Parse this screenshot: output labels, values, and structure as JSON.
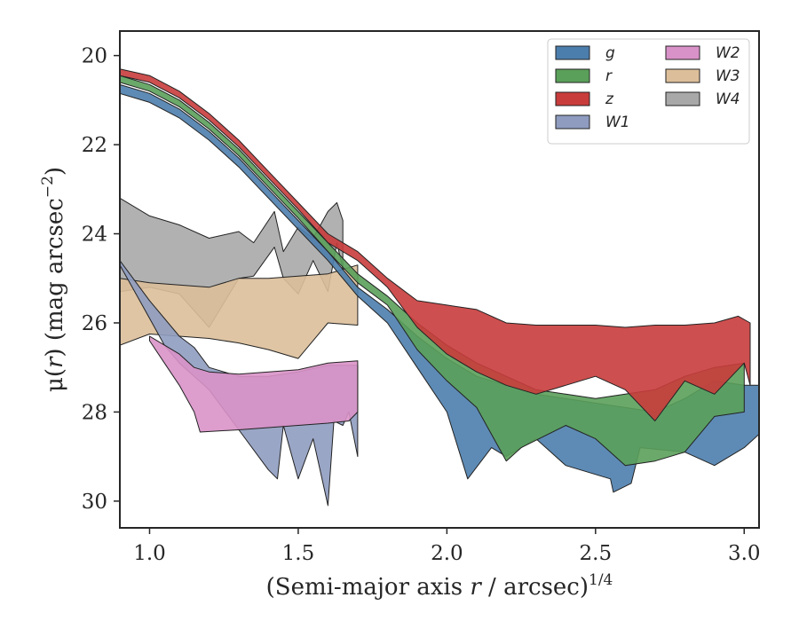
{
  "chart_data": {
    "type": "area",
    "xlabel_prefix": "(Semi-major axis ",
    "xlabel_var": "r",
    "xlabel_mid": " / arcsec)",
    "xlabel_sup": "1/4",
    "ylabel_prefix": "μ(",
    "ylabel_var": "r",
    "ylabel_mid": ") (mag arcsec",
    "ylabel_sup": "−2",
    "ylabel_suffix": ")",
    "xlim": [
      0.9,
      3.05
    ],
    "ylim": [
      30.6,
      19.45
    ],
    "y_inverted": true,
    "xticks": [
      1.0,
      1.5,
      2.0,
      2.5,
      3.0
    ],
    "xtick_labels": [
      "1.0",
      "1.5",
      "2.0",
      "2.5",
      "3.0"
    ],
    "yticks": [
      20,
      22,
      24,
      26,
      28,
      30
    ],
    "ytick_labels": [
      "20",
      "22",
      "24",
      "26",
      "28",
      "30"
    ],
    "legend_placement": "top-right",
    "legend_columns": 2,
    "grid": false,
    "series": [
      {
        "name": "W4",
        "color": "#a8a8a8",
        "upper": [
          [
            0.9,
            23.2
          ],
          [
            1.0,
            23.6
          ],
          [
            1.1,
            23.8
          ],
          [
            1.2,
            24.1
          ],
          [
            1.3,
            23.95
          ],
          [
            1.35,
            24.2
          ],
          [
            1.42,
            23.5
          ],
          [
            1.45,
            24.4
          ],
          [
            1.5,
            23.85
          ],
          [
            1.55,
            24.1
          ],
          [
            1.6,
            23.5
          ],
          [
            1.63,
            23.3
          ],
          [
            1.65,
            23.7
          ]
        ],
        "lower": [
          [
            0.9,
            25.3
          ],
          [
            1.0,
            25.2
          ],
          [
            1.1,
            25.35
          ],
          [
            1.2,
            26.1
          ],
          [
            1.3,
            25.0
          ],
          [
            1.35,
            24.95
          ],
          [
            1.42,
            24.3
          ],
          [
            1.45,
            25.0
          ],
          [
            1.5,
            25.35
          ],
          [
            1.55,
            24.6
          ],
          [
            1.6,
            25.3
          ],
          [
            1.63,
            24.2
          ],
          [
            1.65,
            24.8
          ]
        ]
      },
      {
        "name": "W3",
        "color": "#dcbf9a",
        "upper": [
          [
            0.9,
            25.0
          ],
          [
            1.0,
            25.1
          ],
          [
            1.1,
            25.15
          ],
          [
            1.2,
            25.2
          ],
          [
            1.3,
            25.0
          ],
          [
            1.4,
            25.0
          ],
          [
            1.5,
            24.95
          ],
          [
            1.6,
            24.9
          ],
          [
            1.7,
            24.7
          ]
        ],
        "lower": [
          [
            0.9,
            26.5
          ],
          [
            1.0,
            26.25
          ],
          [
            1.1,
            26.3
          ],
          [
            1.2,
            26.35
          ],
          [
            1.3,
            26.45
          ],
          [
            1.4,
            26.6
          ],
          [
            1.5,
            26.8
          ],
          [
            1.6,
            26.0
          ],
          [
            1.7,
            26.05
          ]
        ]
      },
      {
        "name": "W1",
        "color": "#8f9cc0",
        "upper": [
          [
            0.9,
            24.6
          ],
          [
            1.0,
            25.5
          ],
          [
            1.1,
            26.3
          ],
          [
            1.15,
            26.55
          ],
          [
            1.2,
            27.0
          ],
          [
            1.3,
            27.2
          ],
          [
            1.4,
            27.2
          ],
          [
            1.5,
            27.1
          ],
          [
            1.6,
            26.95
          ],
          [
            1.7,
            26.95
          ]
        ],
        "lower": [
          [
            0.9,
            24.7
          ],
          [
            1.0,
            25.9
          ],
          [
            1.05,
            26.5
          ],
          [
            1.1,
            26.9
          ],
          [
            1.2,
            27.5
          ],
          [
            1.3,
            28.4
          ],
          [
            1.4,
            29.3
          ],
          [
            1.43,
            29.5
          ],
          [
            1.45,
            28.3
          ],
          [
            1.5,
            29.5
          ],
          [
            1.55,
            28.6
          ],
          [
            1.6,
            30.1
          ],
          [
            1.62,
            28.2
          ],
          [
            1.65,
            28.3
          ],
          [
            1.67,
            28.0
          ],
          [
            1.7,
            29.0
          ]
        ]
      },
      {
        "name": "W2",
        "color": "#d992c8",
        "upper": [
          [
            1.0,
            26.3
          ],
          [
            1.1,
            26.7
          ],
          [
            1.15,
            27.0
          ],
          [
            1.2,
            27.1
          ],
          [
            1.3,
            27.15
          ],
          [
            1.4,
            27.1
          ],
          [
            1.5,
            27.05
          ],
          [
            1.6,
            26.9
          ],
          [
            1.7,
            26.85
          ]
        ],
        "lower": [
          [
            1.0,
            26.4
          ],
          [
            1.05,
            26.9
          ],
          [
            1.1,
            27.4
          ],
          [
            1.15,
            28.0
          ],
          [
            1.17,
            28.45
          ],
          [
            1.3,
            28.4
          ],
          [
            1.4,
            28.35
          ],
          [
            1.5,
            28.3
          ],
          [
            1.6,
            28.25
          ],
          [
            1.67,
            28.2
          ],
          [
            1.7,
            28.0
          ]
        ]
      },
      {
        "name": "g",
        "color": "#4c7ead",
        "upper": [
          [
            0.9,
            20.65
          ],
          [
            1.0,
            20.85
          ],
          [
            1.1,
            21.2
          ],
          [
            1.2,
            21.7
          ],
          [
            1.3,
            22.3
          ],
          [
            1.4,
            23.0
          ],
          [
            1.5,
            23.7
          ],
          [
            1.6,
            24.4
          ],
          [
            1.7,
            25.2
          ],
          [
            1.8,
            25.7
          ],
          [
            1.9,
            26.3
          ],
          [
            2.0,
            26.8
          ],
          [
            2.1,
            27.2
          ],
          [
            2.2,
            27.4
          ],
          [
            2.3,
            27.6
          ],
          [
            2.4,
            27.7
          ],
          [
            2.5,
            27.8
          ],
          [
            2.6,
            27.9
          ],
          [
            2.7,
            28.0
          ],
          [
            2.8,
            27.7
          ],
          [
            2.9,
            27.3
          ],
          [
            3.0,
            27.4
          ],
          [
            3.05,
            27.4
          ]
        ],
        "lower": [
          [
            0.9,
            20.85
          ],
          [
            1.0,
            21.05
          ],
          [
            1.1,
            21.4
          ],
          [
            1.2,
            21.9
          ],
          [
            1.3,
            22.5
          ],
          [
            1.4,
            23.2
          ],
          [
            1.5,
            23.9
          ],
          [
            1.6,
            24.6
          ],
          [
            1.7,
            25.4
          ],
          [
            1.8,
            26.0
          ],
          [
            1.9,
            27.0
          ],
          [
            2.0,
            28.0
          ],
          [
            2.07,
            29.5
          ],
          [
            2.15,
            28.8
          ],
          [
            2.2,
            29.0
          ],
          [
            2.3,
            28.6
          ],
          [
            2.4,
            29.2
          ],
          [
            2.55,
            29.5
          ],
          [
            2.56,
            29.8
          ],
          [
            2.62,
            29.6
          ],
          [
            2.65,
            28.8
          ],
          [
            2.8,
            28.9
          ],
          [
            2.9,
            29.2
          ],
          [
            3.0,
            28.8
          ],
          [
            3.05,
            28.5
          ]
        ]
      },
      {
        "name": "r",
        "color": "#5aa05a",
        "upper": [
          [
            0.9,
            20.45
          ],
          [
            1.0,
            20.65
          ],
          [
            1.1,
            21.0
          ],
          [
            1.2,
            21.5
          ],
          [
            1.3,
            22.1
          ],
          [
            1.4,
            22.8
          ],
          [
            1.5,
            23.5
          ],
          [
            1.6,
            24.2
          ],
          [
            1.7,
            24.9
          ],
          [
            1.8,
            25.4
          ],
          [
            1.9,
            26.0
          ],
          [
            2.0,
            26.5
          ],
          [
            2.1,
            26.9
          ],
          [
            2.2,
            27.2
          ],
          [
            2.3,
            27.5
          ],
          [
            2.4,
            27.6
          ],
          [
            2.5,
            27.7
          ],
          [
            2.6,
            27.6
          ],
          [
            2.7,
            27.5
          ],
          [
            2.8,
            27.2
          ],
          [
            2.9,
            27.0
          ],
          [
            3.0,
            26.9
          ]
        ],
        "lower": [
          [
            0.9,
            20.6
          ],
          [
            1.0,
            20.8
          ],
          [
            1.1,
            21.15
          ],
          [
            1.2,
            21.65
          ],
          [
            1.3,
            22.25
          ],
          [
            1.4,
            22.95
          ],
          [
            1.5,
            23.65
          ],
          [
            1.6,
            24.4
          ],
          [
            1.7,
            25.1
          ],
          [
            1.8,
            25.6
          ],
          [
            1.9,
            26.6
          ],
          [
            2.0,
            27.3
          ],
          [
            2.1,
            27.9
          ],
          [
            2.2,
            29.1
          ],
          [
            2.25,
            28.8
          ],
          [
            2.4,
            28.3
          ],
          [
            2.5,
            28.6
          ],
          [
            2.6,
            29.2
          ],
          [
            2.7,
            29.1
          ],
          [
            2.8,
            28.9
          ],
          [
            2.9,
            28.1
          ],
          [
            3.0,
            28.0
          ]
        ]
      },
      {
        "name": "z",
        "color": "#c93c3c",
        "upper": [
          [
            0.9,
            20.3
          ],
          [
            1.0,
            20.45
          ],
          [
            1.1,
            20.8
          ],
          [
            1.2,
            21.3
          ],
          [
            1.3,
            21.9
          ],
          [
            1.4,
            22.6
          ],
          [
            1.5,
            23.3
          ],
          [
            1.6,
            24.0
          ],
          [
            1.7,
            24.4
          ],
          [
            1.8,
            25.0
          ],
          [
            1.9,
            25.5
          ],
          [
            2.0,
            25.6
          ],
          [
            2.1,
            25.7
          ],
          [
            2.2,
            26.0
          ],
          [
            2.3,
            26.05
          ],
          [
            2.4,
            26.05
          ],
          [
            2.5,
            26.05
          ],
          [
            2.6,
            26.1
          ],
          [
            2.7,
            26.05
          ],
          [
            2.8,
            26.05
          ],
          [
            2.9,
            26.0
          ],
          [
            2.98,
            25.85
          ],
          [
            3.02,
            26.0
          ]
        ],
        "lower": [
          [
            0.9,
            20.45
          ],
          [
            1.0,
            20.6
          ],
          [
            1.1,
            20.95
          ],
          [
            1.2,
            21.45
          ],
          [
            1.3,
            22.05
          ],
          [
            1.4,
            22.75
          ],
          [
            1.5,
            23.45
          ],
          [
            1.6,
            24.2
          ],
          [
            1.7,
            24.6
          ],
          [
            1.8,
            25.2
          ],
          [
            1.9,
            26.1
          ],
          [
            2.0,
            26.7
          ],
          [
            2.1,
            27.1
          ],
          [
            2.2,
            27.4
          ],
          [
            2.3,
            27.6
          ],
          [
            2.4,
            27.4
          ],
          [
            2.5,
            27.2
          ],
          [
            2.6,
            27.5
          ],
          [
            2.7,
            28.2
          ],
          [
            2.8,
            27.3
          ],
          [
            2.9,
            27.6
          ],
          [
            3.0,
            26.9
          ],
          [
            3.02,
            27.4
          ]
        ]
      }
    ],
    "legend_order": [
      "g",
      "r",
      "z",
      "W1",
      "W2",
      "W3",
      "W4"
    ]
  }
}
